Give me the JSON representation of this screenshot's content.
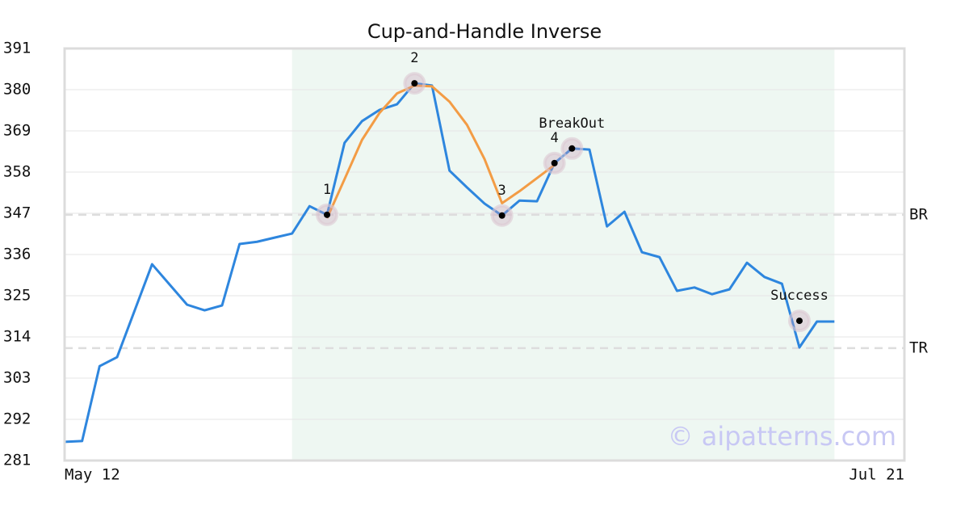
{
  "chart_data": {
    "type": "line",
    "title": "Cup-and-Handle Inverse",
    "xlim": [
      0,
      48
    ],
    "xticks": [
      {
        "value": 0,
        "label": "May 12"
      },
      {
        "value": 48,
        "label": "Jul 21"
      }
    ],
    "ylim": [
      281,
      391
    ],
    "yticks": [
      281,
      292,
      303,
      314,
      325,
      336,
      347,
      358,
      369,
      380,
      391
    ],
    "grid": true,
    "shaded_region": [
      13,
      44
    ],
    "series": [
      {
        "color": "#2e86de",
        "x": [
          0,
          1,
          2,
          3,
          4,
          5,
          6,
          7,
          8,
          9,
          10,
          11,
          12,
          13,
          14,
          15,
          16,
          17,
          18,
          19,
          20,
          21,
          22,
          23,
          24,
          25,
          26,
          27,
          28,
          29,
          30,
          31,
          32,
          33,
          34,
          35,
          36,
          37,
          38,
          39,
          40,
          41,
          42,
          43,
          44
        ],
        "values": [
          286.0,
          286.2,
          306.2,
          308.6,
          321.0,
          333.4,
          328.0,
          322.6,
          321.1,
          322.4,
          338.8,
          339.4,
          340.5,
          341.6,
          348.9,
          346.6,
          365.8,
          371.6,
          374.6,
          376.1,
          381.7,
          381.1,
          358.4,
          353.9,
          349.6,
          346.4,
          350.4,
          350.2,
          360.4,
          364.3,
          364.0,
          343.5,
          347.4,
          336.6,
          335.3,
          326.3,
          327.2,
          325.4,
          326.7,
          333.8,
          330.0,
          328.2,
          311.2,
          318.1,
          318.1
        ]
      },
      {
        "color": "#f39c45",
        "x": [
          15,
          16,
          17,
          18,
          19,
          20,
          21,
          22,
          23,
          24,
          25,
          26,
          27,
          28
        ],
        "values": [
          345.7,
          356.1,
          366.6,
          373.8,
          379.0,
          381.1,
          380.9,
          376.8,
          370.6,
          361.5,
          349.7,
          352.9,
          356.4,
          359.9
        ]
      }
    ],
    "markers": [
      {
        "label": "1",
        "x": 15,
        "y": 346.6
      },
      {
        "label": "2",
        "x": 20,
        "y": 381.7
      },
      {
        "label": "3",
        "x": 25,
        "y": 346.4
      },
      {
        "label": "4",
        "x": 28,
        "y": 360.4
      },
      {
        "label": "BreakOut",
        "x": 29,
        "y": 364.3
      },
      {
        "label": "Success",
        "x": 42,
        "y": 318.3
      }
    ],
    "hlines": [
      {
        "label": "BR",
        "value": 346.6
      },
      {
        "label": "TR",
        "value": 311.0
      }
    ],
    "watermark": "© aipatterns.com"
  }
}
